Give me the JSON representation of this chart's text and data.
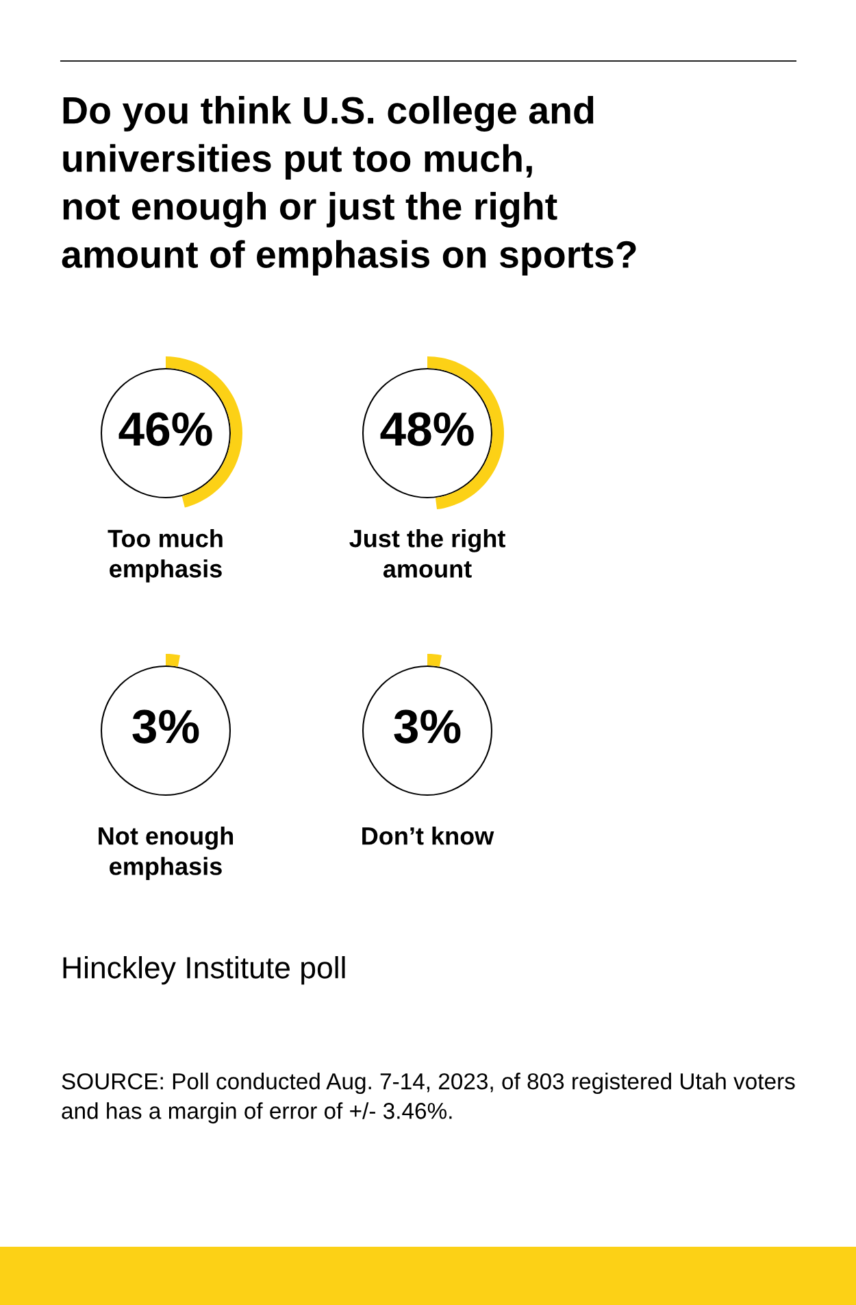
{
  "chart_data": [
    {
      "type": "other",
      "title": "Do you think U.S. college and\nuniversities put too much,\nnot enough or just the right\namount of emphasis on sports?"
    },
    {
      "type": "pie",
      "title": "Too much\nemphasis",
      "values": [
        46
      ],
      "colors": [
        "#fcd116"
      ],
      "value_labels": [
        "46%"
      ]
    },
    {
      "type": "pie",
      "title": "Just the right\namount",
      "values": [
        48
      ],
      "colors": [
        "#fcd116"
      ],
      "value_labels": [
        "48%"
      ]
    },
    {
      "type": "pie",
      "title": "Not enough\nemphasis",
      "values": [
        3
      ],
      "colors": [
        "#fcd116"
      ],
      "value_labels": [
        "3%"
      ]
    },
    {
      "type": "pie",
      "title": "Don’t know",
      "values": [
        3
      ],
      "colors": [
        "#fcd116"
      ],
      "value_labels": [
        "3%"
      ]
    },
    {
      "type": "other",
      "annotations": [
        "Hinckley Institute poll",
        "SOURCE: Poll conducted Aug. 7-14, 2023, of 803 registered Utah voters\nand has a margin of error of +/- 3.46%."
      ]
    }
  ]
}
